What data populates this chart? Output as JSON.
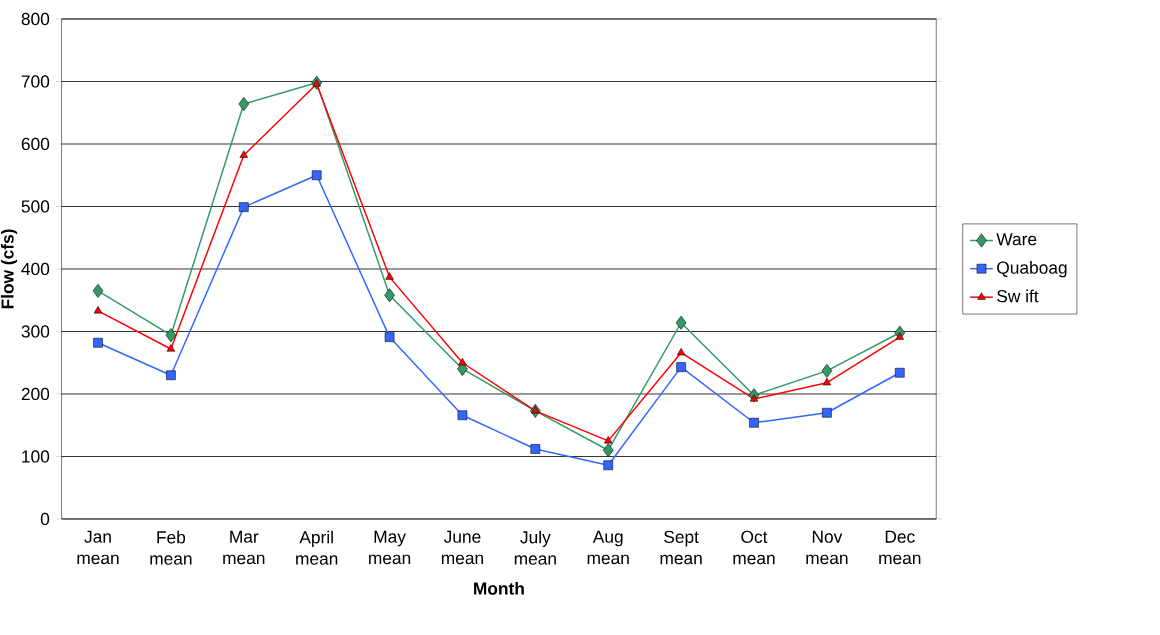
{
  "chart_data": {
    "type": "line",
    "xlabel": "Month",
    "ylabel": "Flow (cfs)",
    "categories": [
      "Jan mean",
      "Feb mean",
      "Mar mean",
      "April mean",
      "May mean",
      "June mean",
      "July mean",
      "Aug mean",
      "Sept mean",
      "Oct mean",
      "Nov mean",
      "Dec mean"
    ],
    "series": [
      {
        "name": "Ware",
        "color": "#339966",
        "marker": "diamond",
        "values": [
          365,
          294,
          664,
          698,
          358,
          240,
          173,
          110,
          314,
          198,
          237,
          298
        ]
      },
      {
        "name": "Quaboag",
        "color": "#3366ff",
        "marker": "square",
        "values": [
          282,
          230,
          499,
          550,
          291,
          166,
          112,
          86,
          243,
          154,
          170,
          234
        ]
      },
      {
        "name": "Sw ift",
        "color": "#ff0000",
        "marker": "triangle",
        "values": [
          333,
          272,
          582,
          696,
          387,
          250,
          173,
          125,
          266,
          192,
          218,
          291
        ]
      }
    ],
    "ylim": [
      0,
      800
    ],
    "yticks": [
      0,
      100,
      200,
      300,
      400,
      500,
      600,
      700,
      800
    ],
    "grid": "y",
    "legend": "right",
    "line_style": "solid"
  }
}
